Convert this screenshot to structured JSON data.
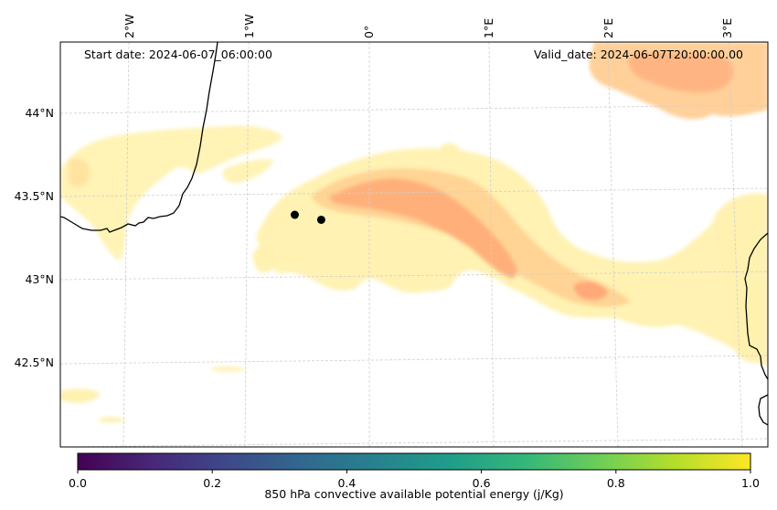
{
  "map": {
    "start_date": "Start date: 2024-06-07_06:00:00",
    "valid_date": "Valid_date: 2024-06-07T20:00:00.00",
    "lon_ticks": [
      "2°W",
      "1°W",
      "0°",
      "1°E",
      "2°E",
      "3°E"
    ],
    "lat_ticks": [
      "44°N",
      "43.5°N",
      "43°N",
      "42.5°N"
    ],
    "markers": [
      {
        "name": "marker-1",
        "lon": -0.62,
        "lat": 43.39
      },
      {
        "name": "marker-2",
        "lon": -0.4,
        "lat": 43.36
      }
    ],
    "coastline_color": "#000000",
    "gridline_color": "#cccccc"
  },
  "colorbar": {
    "label": "850 hPa convective available potential energy (j/Kg)",
    "colormap": "viridis",
    "ticks": [
      "0.0",
      "0.2",
      "0.4",
      "0.6",
      "0.8",
      "1.0"
    ],
    "range": [
      0.0,
      1.0
    ],
    "colors": [
      "#440154",
      "#482878",
      "#3e4989",
      "#31688e",
      "#26828e",
      "#1f9e89",
      "#35b779",
      "#6ece58",
      "#b5de2b",
      "#fde725"
    ]
  },
  "field": {
    "palette": [
      "#fff6b8",
      "#ffe9a8",
      "#ffd593",
      "#ffbf80",
      "#ffa878",
      "#ff9560"
    ]
  }
}
